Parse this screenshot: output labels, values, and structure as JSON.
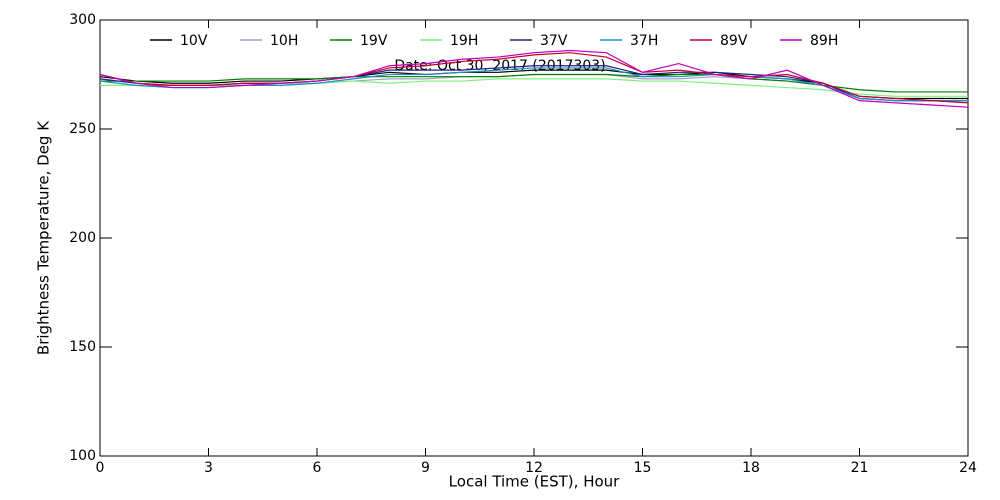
{
  "chart_data": {
    "type": "line",
    "annotation": "Date: Oct 30, 2017 (2017303)",
    "x_label": "Local Time (EST), Hour",
    "y_label": "Brightness Temperature, Deg K",
    "x": [
      0,
      1,
      2,
      3,
      4,
      5,
      6,
      7,
      8,
      9,
      10,
      11,
      12,
      13,
      14,
      15,
      16,
      17,
      18,
      19,
      20,
      21,
      22,
      23,
      24
    ],
    "series": [
      {
        "name": "10V",
        "color": "#000000",
        "values": [
          274,
          272,
          271,
          271,
          272,
          272,
          273,
          274,
          276,
          275,
          276,
          276,
          277,
          277,
          277,
          275,
          275,
          276,
          274,
          273,
          271,
          265,
          264,
          264,
          264
        ]
      },
      {
        "name": "10H",
        "color": "#a0a0c8",
        "values": [
          272,
          270,
          269,
          269,
          270,
          270,
          271,
          272,
          273,
          273,
          274,
          274,
          275,
          275,
          275,
          273,
          273,
          274,
          273,
          272,
          270,
          264,
          263,
          263,
          263
        ]
      },
      {
        "name": "19V",
        "color": "#008000",
        "values": [
          272,
          272,
          272,
          272,
          273,
          273,
          273,
          274,
          274,
          274,
          274,
          274,
          275,
          275,
          275,
          274,
          275,
          275,
          273,
          272,
          270,
          268,
          267,
          267,
          267
        ]
      },
      {
        "name": "19H",
        "color": "#80f080",
        "values": [
          270,
          270,
          270,
          270,
          270,
          271,
          271,
          272,
          271,
          272,
          272,
          273,
          273,
          273,
          273,
          272,
          272,
          271,
          270,
          269,
          268,
          266,
          265,
          265,
          265
        ]
      },
      {
        "name": "37V",
        "color": "#202080",
        "values": [
          273,
          271,
          270,
          270,
          271,
          271,
          272,
          274,
          277,
          277,
          277,
          278,
          279,
          279,
          279,
          275,
          276,
          276,
          275,
          274,
          271,
          264,
          263,
          263,
          263
        ]
      },
      {
        "name": "37H",
        "color": "#2090c0",
        "values": [
          272,
          270,
          269,
          269,
          270,
          270,
          271,
          273,
          275,
          275,
          276,
          277,
          278,
          278,
          278,
          274,
          274,
          275,
          274,
          273,
          270,
          264,
          263,
          263,
          263
        ]
      },
      {
        "name": "89V",
        "color": "#c00030",
        "values": [
          275,
          271,
          270,
          270,
          271,
          271,
          272,
          274,
          278,
          279,
          281,
          282,
          284,
          285,
          283,
          276,
          277,
          275,
          274,
          275,
          271,
          265,
          264,
          263,
          262
        ]
      },
      {
        "name": "89H",
        "color": "#c000c0",
        "values": [
          275,
          271,
          269,
          269,
          270,
          271,
          272,
          274,
          279,
          280,
          282,
          283,
          285,
          286,
          285,
          276,
          280,
          275,
          273,
          277,
          270,
          263,
          262,
          261,
          260
        ]
      }
    ],
    "xlim": [
      0,
      24
    ],
    "xticks": [
      0,
      3,
      6,
      9,
      12,
      15,
      18,
      21,
      24
    ],
    "ylim": [
      100,
      300
    ],
    "yticks": [
      100,
      150,
      200,
      250,
      300
    ]
  }
}
